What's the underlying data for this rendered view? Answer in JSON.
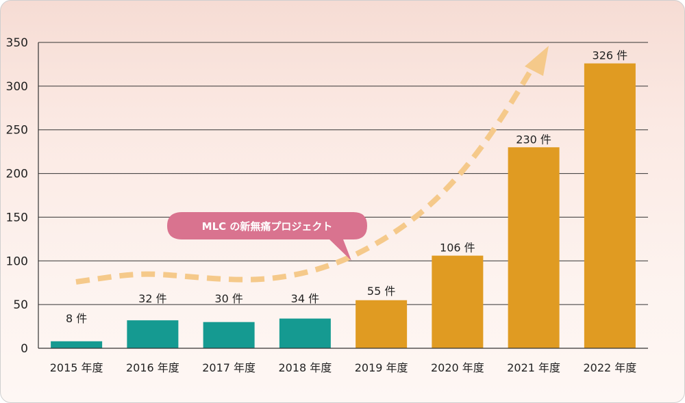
{
  "chart_data": {
    "type": "bar",
    "categories": [
      "2015 年度",
      "2016 年度",
      "2017 年度",
      "2018 年度",
      "2019 年度",
      "2020 年度",
      "2021 年度",
      "2022 年度"
    ],
    "values": [
      8,
      32,
      30,
      34,
      55,
      106,
      230,
      326
    ],
    "data_labels": [
      "8 件",
      "32 件",
      "30 件",
      "34 件",
      "55 件",
      "106 件",
      "230 件",
      "326 件"
    ],
    "bar_colors": [
      "#159a91",
      "#159a91",
      "#159a91",
      "#159a91",
      "#e09b22",
      "#e09b22",
      "#e09b22",
      "#e09b22"
    ],
    "yticks": [
      0,
      50,
      100,
      150,
      200,
      250,
      300,
      350
    ],
    "ylim": [
      0,
      350
    ],
    "grid": true,
    "annotation": "MLC の新無痛プロジェクト",
    "annotation_color": "#d9738f",
    "trend_arrow_color": "#f5c98a"
  }
}
